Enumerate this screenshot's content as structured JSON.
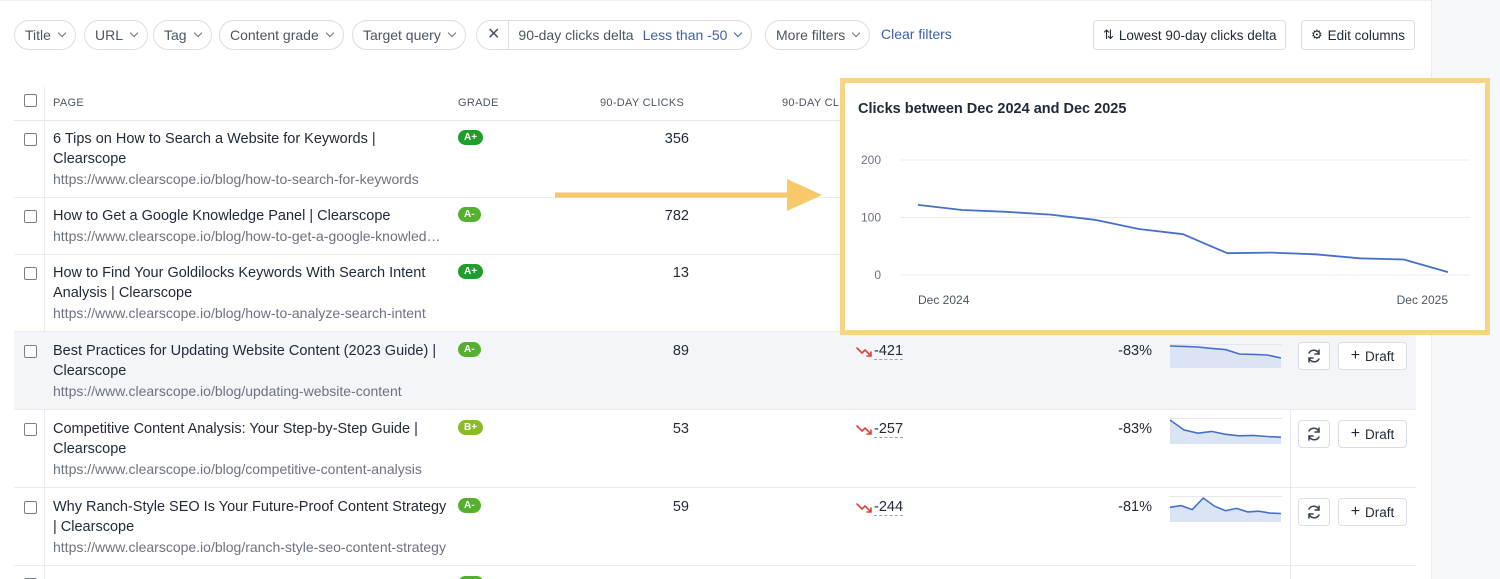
{
  "filters": {
    "title": "Title",
    "url": "URL",
    "tag": "Tag",
    "content_grade": "Content grade",
    "target_query": "Target query",
    "active_filter_label": "90-day clicks delta",
    "active_filter_value": "Less than -50",
    "more_filters": "More filters",
    "clear_filters": "Clear filters",
    "sort_button": "Lowest 90-day clicks delta",
    "edit_columns": "Edit columns"
  },
  "table": {
    "headers": {
      "page": "PAGE",
      "grade": "GRADE",
      "clicks": "90-DAY CLICKS",
      "delta": "90-DAY CL"
    },
    "draft_label": "Draft",
    "rows": [
      {
        "title": "6 Tips on How to Search a Website for Keywords | Clearscope",
        "url": "https://www.clearscope.io/blog/how-to-search-for-keywords",
        "grade": "A+",
        "clicks": "356",
        "delta": "",
        "pct": ""
      },
      {
        "title": "How to Get a Google Knowledge Panel | Clearscope",
        "url": "https://www.clearscope.io/blog/how-to-get-a-google-knowledge-panel",
        "grade": "A-",
        "clicks": "782",
        "delta": "",
        "pct": ""
      },
      {
        "title": "How to Find Your Goldilocks Keywords With Search Intent Analysis | Clearscope",
        "url": "https://www.clearscope.io/blog/how-to-analyze-search-intent",
        "grade": "A+",
        "clicks": "13",
        "delta": "",
        "pct": ""
      },
      {
        "title": "Best Practices for Updating Website Content (2023 Guide) | Clearscope",
        "url": "https://www.clearscope.io/blog/updating-website-content",
        "grade": "A-",
        "clicks": "89",
        "delta": "-421",
        "pct": "-83%",
        "spark": [
          100,
          98,
          95,
          88,
          82,
          60,
          58,
          55,
          40
        ]
      },
      {
        "title": "Competitive Content Analysis: Your Step-by-Step Guide | Clearscope",
        "url": "https://www.clearscope.io/blog/competitive-content-analysis",
        "grade": "B+",
        "clicks": "53",
        "delta": "-257",
        "pct": "-83%",
        "spark": [
          100,
          55,
          40,
          48,
          35,
          28,
          30,
          25,
          22
        ]
      },
      {
        "title": "Why Ranch-Style SEO Is Your Future-Proof Content Strategy | Clearscope",
        "url": "https://www.clearscope.io/blog/ranch-style-seo-content-strategy",
        "grade": "A-",
        "clicks": "59",
        "delta": "-244",
        "pct": "-81%",
        "spark": [
          55,
          62,
          45,
          95,
          60,
          40,
          50,
          35,
          38,
          30,
          28
        ]
      }
    ]
  },
  "colors": {
    "grade_a_plus": "#1f9e2c",
    "grade_a_minus": "#56b02f",
    "grade_b_plus": "#8bbb2a",
    "line": "#4670c8",
    "highlight_border": "#f7d586",
    "arrow": "#f7c96a",
    "down_arrow": "#d9453d"
  },
  "chart_data": {
    "type": "line",
    "title": "Clicks between Dec 2024 and Dec 2025",
    "x_tick_labels": [
      "Dec 2024",
      "Dec 2025"
    ],
    "y_ticks": [
      0,
      100,
      200
    ],
    "ylim": [
      0,
      200
    ],
    "grid": true,
    "series": [
      {
        "values": [
          122,
          113,
          110,
          105,
          96,
          80,
          71,
          38,
          39,
          36,
          29,
          27,
          5
        ]
      }
    ]
  }
}
